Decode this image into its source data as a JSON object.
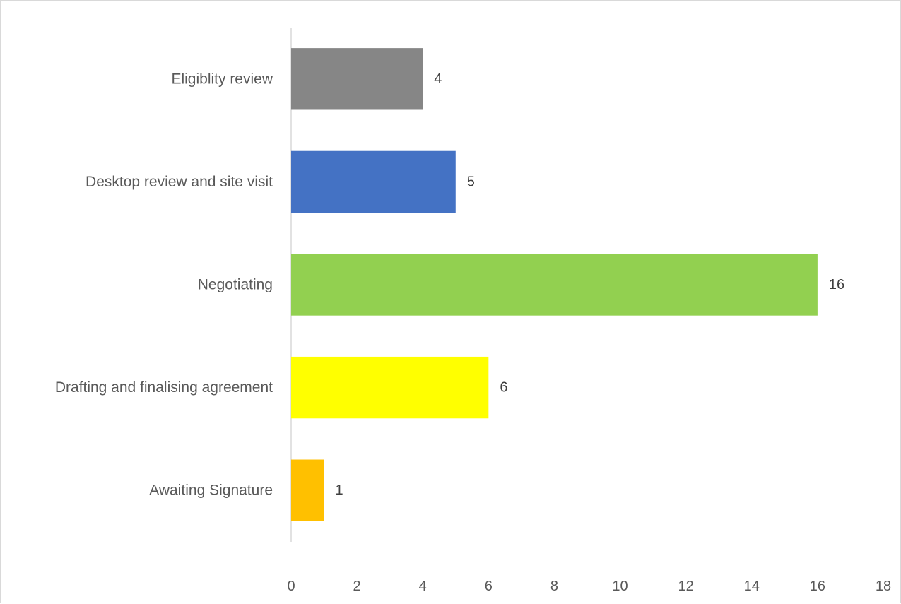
{
  "chart_data": {
    "type": "bar",
    "orientation": "horizontal",
    "categories": [
      "Eligiblity review",
      "Desktop review and site visit",
      "Negotiating",
      "Drafting and finalising agreement",
      "Awaiting Signature"
    ],
    "values": [
      4,
      5,
      16,
      6,
      1
    ],
    "colors": [
      "#868686",
      "#4472c4",
      "#92d050",
      "#ffff00",
      "#ffc000"
    ],
    "data_labels": [
      "4",
      "5",
      "16",
      "6",
      "1"
    ],
    "xlim": [
      0,
      18
    ],
    "x_ticks": [
      0,
      2,
      4,
      6,
      8,
      10,
      12,
      14,
      16,
      18
    ],
    "x_tick_labels": [
      "0",
      "2",
      "4",
      "6",
      "8",
      "10",
      "12",
      "14",
      "16",
      "18"
    ],
    "title": "",
    "xlabel": "",
    "ylabel": "",
    "grid": false,
    "legend": "none"
  }
}
